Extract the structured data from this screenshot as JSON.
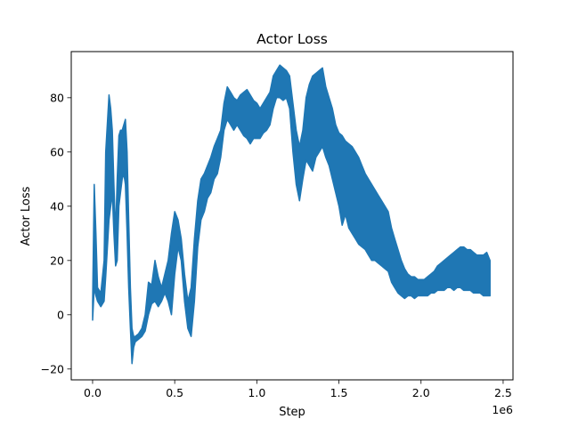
{
  "chart_data": {
    "type": "line",
    "title": "Actor Loss",
    "xlabel": "Step",
    "ylabel": "Actor Loss",
    "x_offset_label": "1e6",
    "xlim": [
      -0.13,
      2.56
    ],
    "ylim": [
      -24,
      97
    ],
    "x_ticks": [
      0.0,
      0.5,
      1.0,
      1.5,
      2.0,
      2.5
    ],
    "x_tick_labels": [
      "0.0",
      "0.5",
      "1.0",
      "1.5",
      "2.0",
      "2.5"
    ],
    "y_ticks": [
      -20,
      0,
      20,
      40,
      60,
      80
    ],
    "y_tick_labels": [
      "−20",
      "0",
      "20",
      "40",
      "60",
      "80"
    ],
    "grid": false,
    "line_color": "#1f77b4",
    "series": [
      {
        "x": [
          0.0,
          0.01,
          0.02,
          0.03,
          0.05,
          0.07,
          0.08,
          0.1,
          0.11,
          0.12,
          0.13,
          0.14,
          0.15,
          0.16,
          0.17,
          0.18,
          0.19,
          0.2,
          0.21,
          0.22,
          0.23,
          0.24,
          0.25,
          0.26,
          0.28,
          0.3,
          0.32,
          0.34,
          0.36,
          0.38,
          0.4,
          0.42,
          0.44,
          0.46,
          0.48,
          0.5,
          0.52,
          0.54,
          0.56,
          0.58,
          0.6,
          0.62,
          0.64,
          0.66,
          0.68,
          0.7,
          0.72,
          0.74,
          0.76,
          0.78,
          0.8,
          0.82,
          0.84,
          0.86,
          0.88,
          0.9,
          0.92,
          0.94,
          0.96,
          0.98,
          1.0,
          1.02,
          1.04,
          1.06,
          1.08,
          1.1,
          1.12,
          1.14,
          1.16,
          1.18,
          1.2,
          1.22,
          1.24,
          1.26,
          1.28,
          1.3,
          1.32,
          1.34,
          1.36,
          1.38,
          1.4,
          1.42,
          1.44,
          1.46,
          1.48,
          1.5,
          1.52,
          1.54,
          1.56,
          1.58,
          1.6,
          1.62,
          1.64,
          1.66,
          1.68,
          1.7,
          1.72,
          1.74,
          1.76,
          1.78,
          1.8,
          1.82,
          1.84,
          1.86,
          1.88,
          1.9,
          1.92,
          1.94,
          1.96,
          1.98,
          2.0,
          2.02,
          2.04,
          2.06,
          2.08,
          2.1,
          2.12,
          2.14,
          2.16,
          2.18,
          2.2,
          2.22,
          2.24,
          2.26,
          2.28,
          2.3,
          2.32,
          2.34,
          2.36,
          2.38,
          2.4,
          2.42
        ],
        "lo": [
          -2,
          10,
          7,
          5,
          3,
          5,
          14,
          35,
          40,
          45,
          30,
          18,
          20,
          40,
          45,
          50,
          52,
          48,
          30,
          10,
          -5,
          -18,
          -12,
          -10,
          -9,
          -8,
          -6,
          0,
          4,
          5,
          3,
          5,
          8,
          5,
          0,
          15,
          25,
          20,
          5,
          -5,
          -8,
          5,
          25,
          35,
          38,
          43,
          45,
          50,
          52,
          58,
          68,
          72,
          70,
          68,
          70,
          68,
          66,
          65,
          63,
          65,
          65,
          65,
          67,
          68,
          70,
          76,
          80,
          80,
          79,
          80,
          76,
          60,
          48,
          42,
          50,
          57,
          55,
          53,
          58,
          60,
          62,
          58,
          55,
          50,
          45,
          40,
          33,
          37,
          32,
          30,
          28,
          26,
          25,
          24,
          22,
          20,
          20,
          19,
          18,
          17,
          16,
          12,
          10,
          8,
          7,
          6,
          7,
          7,
          6,
          7,
          7,
          7,
          7,
          8,
          8,
          9,
          9,
          9,
          10,
          10,
          9,
          10,
          10,
          9,
          9,
          9,
          8,
          8,
          8,
          7,
          7,
          7
        ],
        "hi": [
          5,
          48,
          30,
          10,
          8,
          20,
          60,
          81,
          76,
          68,
          48,
          30,
          50,
          66,
          68,
          68,
          70,
          72,
          60,
          35,
          10,
          -5,
          -8,
          -8,
          -7,
          -5,
          0,
          12,
          11,
          20,
          14,
          10,
          15,
          20,
          30,
          38,
          35,
          28,
          15,
          5,
          10,
          28,
          42,
          50,
          52,
          55,
          58,
          62,
          65,
          68,
          78,
          84,
          82,
          80,
          79,
          81,
          82,
          83,
          81,
          79,
          78,
          76,
          78,
          80,
          82,
          88,
          90,
          92,
          91,
          90,
          88,
          78,
          68,
          62,
          68,
          80,
          85,
          88,
          89,
          90,
          91,
          84,
          80,
          76,
          70,
          67,
          66,
          64,
          63,
          62,
          60,
          58,
          55,
          52,
          50,
          48,
          46,
          44,
          42,
          40,
          38,
          32,
          28,
          24,
          20,
          17,
          15,
          14,
          14,
          13,
          13,
          13,
          14,
          15,
          16,
          18,
          19,
          20,
          21,
          22,
          23,
          24,
          25,
          25,
          24,
          24,
          23,
          22,
          22,
          22,
          23,
          20
        ]
      }
    ]
  }
}
